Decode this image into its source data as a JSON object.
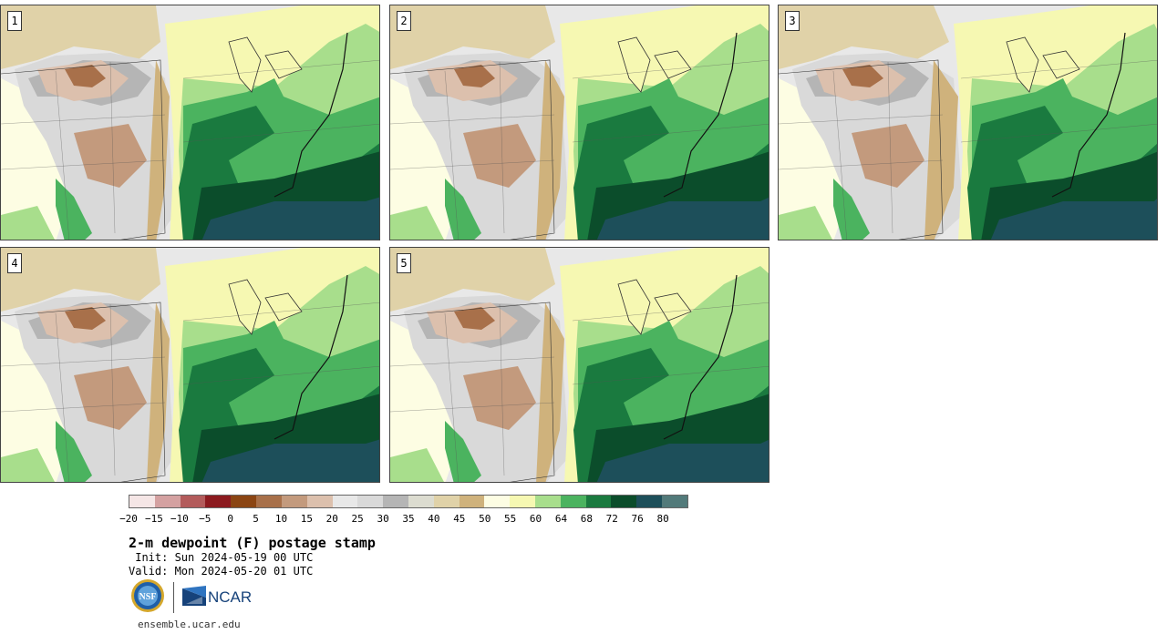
{
  "panels": [
    {
      "label": "1"
    },
    {
      "label": "2"
    },
    {
      "label": "3"
    },
    {
      "label": "4"
    },
    {
      "label": "5"
    }
  ],
  "colorbar": {
    "colors": [
      "#f5e6e6",
      "#d4a1a1",
      "#b35b5b",
      "#8c1a1f",
      "#8b4513",
      "#a8704a",
      "#c39a7d",
      "#dcc0ad",
      "#e8e8e8",
      "#d9d9d9",
      "#b5b5b5",
      "#dcdcd0",
      "#e0d2a8",
      "#cfb27c",
      "#fdfde3",
      "#f6f8b2",
      "#a8de8c",
      "#4bb35f",
      "#1a7a3f",
      "#0b4d2b",
      "#1d4f5a",
      "#527a7a"
    ],
    "tick_labels": [
      "−20",
      "−15",
      "−10",
      "−5",
      "0",
      "5",
      "10",
      "15",
      "20",
      "25",
      "30",
      "35",
      "40",
      "45",
      "50",
      "55",
      "60",
      "64",
      "68",
      "72",
      "76",
      "80"
    ]
  },
  "title": "2-m dewpoint (F) postage stamp",
  "init": " Init: Sun 2024-05-19 00 UTC",
  "valid": "Valid: Mon 2024-05-20 01 UTC",
  "logo": {
    "nsf": "NSF",
    "ncar": "NCAR"
  },
  "site": "ensemble.ucar.edu"
}
